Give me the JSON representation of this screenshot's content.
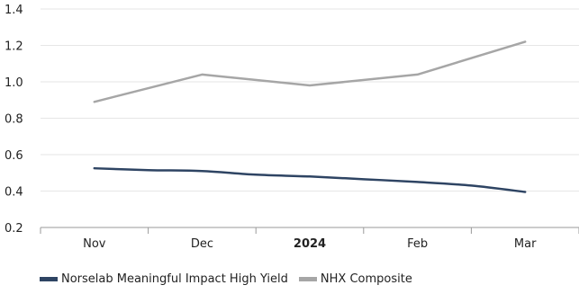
{
  "chart_data": {
    "type": "line",
    "categories": [
      "Nov",
      "Dec",
      "2024",
      "Feb",
      "Mar"
    ],
    "bold_categories": [
      "2024"
    ],
    "ylim": [
      0.2,
      1.4
    ],
    "yticks": [
      "0.2",
      "0.4",
      "0.6",
      "0.8",
      "1.0",
      "1.2",
      "1.4"
    ],
    "ytick_values": [
      0.2,
      0.4,
      0.6,
      0.8,
      1.0,
      1.2,
      1.4
    ],
    "grid": true,
    "legend_position": "bottom-left",
    "series": [
      {
        "name": "Norselab Meaningful Impact High Yield",
        "color": "#2e4463",
        "points": [
          {
            "x": 0,
            "y": 0.525
          },
          {
            "x": 0.5,
            "y": 0.515
          },
          {
            "x": 1,
            "y": 0.51
          },
          {
            "x": 1.5,
            "y": 0.49
          },
          {
            "x": 2,
            "y": 0.48
          },
          {
            "x": 2.5,
            "y": 0.465
          },
          {
            "x": 3,
            "y": 0.45
          },
          {
            "x": 3.5,
            "y": 0.43
          },
          {
            "x": 4,
            "y": 0.395
          }
        ]
      },
      {
        "name": "NHX Composite",
        "color": "#a6a6a6",
        "points": [
          {
            "x": 0,
            "y": 0.89
          },
          {
            "x": 1,
            "y": 1.04
          },
          {
            "x": 2,
            "y": 0.98
          },
          {
            "x": 3,
            "y": 1.04
          },
          {
            "x": 4,
            "y": 1.22
          }
        ]
      }
    ]
  }
}
